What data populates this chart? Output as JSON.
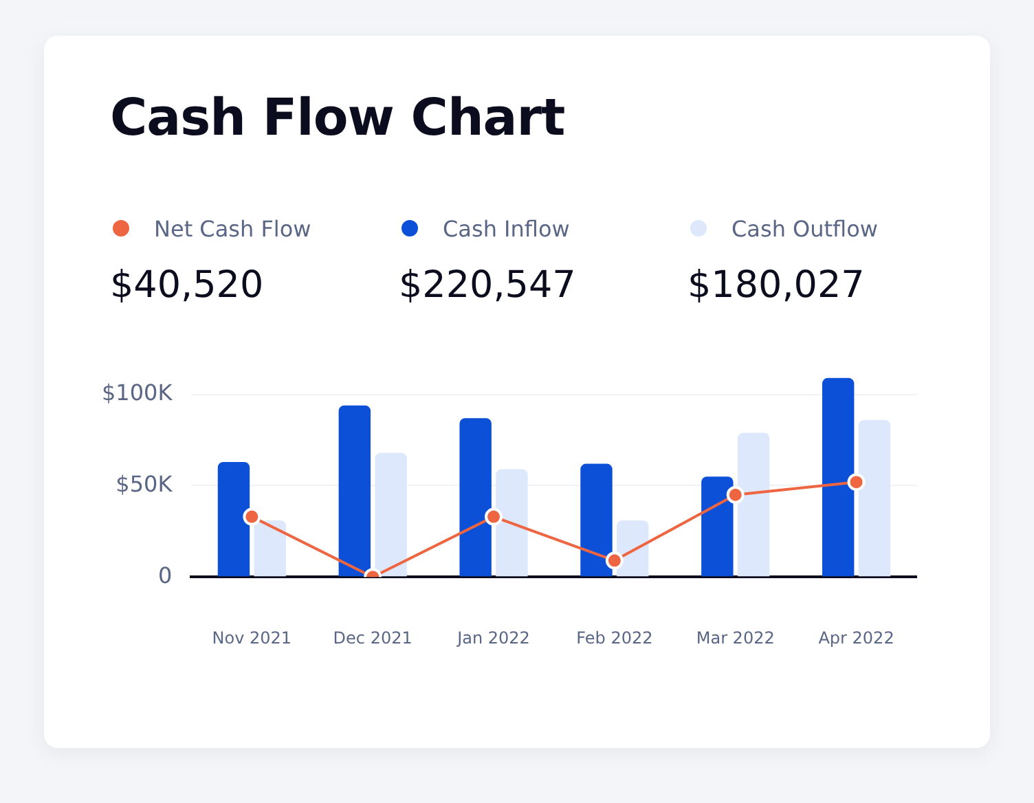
{
  "chart_data": {
    "type": "bar",
    "title": "Cash Flow Chart",
    "categories": [
      "Nov 2021",
      "Dec 2021",
      "Jan 2022",
      "Feb 2022",
      "Mar 2022",
      "Apr 2022"
    ],
    "series": [
      {
        "name": "Net Cash Flow",
        "type": "line",
        "color": "#ee6541",
        "values": [
          33000,
          0,
          33000,
          9000,
          45000,
          52000
        ]
      },
      {
        "name": "Cash Inflow",
        "color": "#0c50d8",
        "values": [
          63000,
          94000,
          87000,
          62000,
          55000,
          109000
        ]
      },
      {
        "name": "Cash Outflow",
        "color": "#dde8fd",
        "values": [
          31000,
          68000,
          59000,
          31000,
          79000,
          86000
        ]
      }
    ],
    "annotations": [
      "$40,520",
      "$220,547",
      "$180,027"
    ],
    "ylim": [
      0,
      110000
    ],
    "yticks": [
      {
        "value": 0,
        "label": "0"
      },
      {
        "value": 50000,
        "label": "$50K"
      },
      {
        "value": 100000,
        "label": "$100K"
      }
    ],
    "grid": "y",
    "legend": "top left",
    "marker": "circle",
    "line_style": "solid"
  }
}
